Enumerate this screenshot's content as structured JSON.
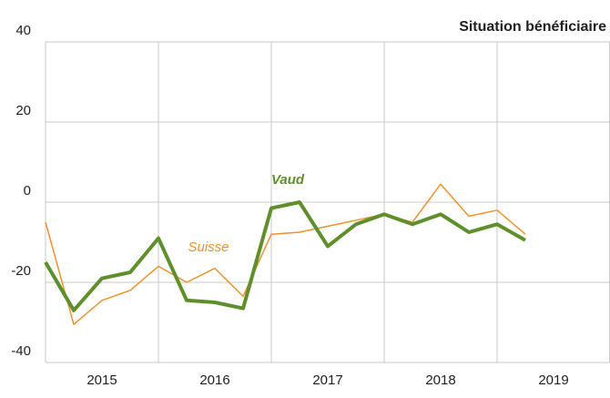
{
  "chart_data": {
    "type": "line",
    "title": "Situation bénéficiaire",
    "x": [
      2015,
      2015.25,
      2015.5,
      2015.75,
      2016,
      2016.25,
      2016.5,
      2016.75,
      2017,
      2017.25,
      2017.5,
      2017.75,
      2018,
      2018.25,
      2018.5,
      2018.75,
      2019,
      2019.25
    ],
    "series": [
      {
        "name": "Suisse",
        "color": "#f0922b",
        "width": 1.5,
        "values": [
          -5,
          -30.5,
          -24.5,
          -22,
          -16,
          -20,
          -16.5,
          -23.5,
          -8,
          -7.5,
          -6,
          -4.5,
          -3,
          -5,
          4.5,
          -3.5,
          -2,
          -8
        ]
      },
      {
        "name": "Vaud",
        "color": "#5f8f2a",
        "width": 4,
        "values": [
          -15,
          -27,
          -19,
          -17.5,
          -9,
          -24.5,
          -25,
          -26.5,
          -1.5,
          0,
          -11,
          -5.5,
          -3,
          -5.5,
          -3,
          -7.5,
          -5.5,
          -9.5
        ]
      }
    ],
    "xlim": [
      2015,
      2020
    ],
    "xticks": [
      {
        "value": 2015.5,
        "label": "2015"
      },
      {
        "value": 2016.5,
        "label": "2016"
      },
      {
        "value": 2017.5,
        "label": "2017"
      },
      {
        "value": 2018.5,
        "label": "2018"
      },
      {
        "value": 2019.5,
        "label": "2019"
      }
    ],
    "xgrid": [
      2015,
      2016,
      2017,
      2018,
      2019,
      2020
    ],
    "ylim": [
      -40,
      40
    ],
    "yticks": [
      40,
      20,
      0,
      -20,
      -40
    ],
    "grid": true
  }
}
